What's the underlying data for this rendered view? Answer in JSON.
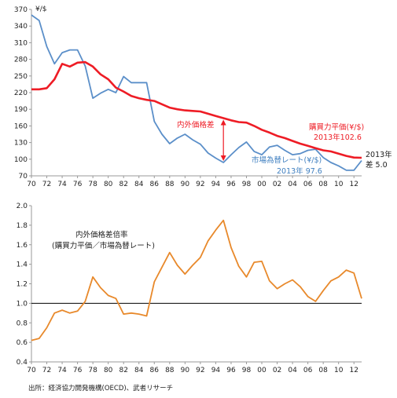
{
  "colors": {
    "ppp": "#ee1c25",
    "market": "#5b8fc9",
    "ratio": "#e8892b",
    "axis": "#999999",
    "text": "#222222",
    "annotation_ppp": "#ee1c25",
    "annotation_market": "#3f7fc0"
  },
  "chart_data": [
    {
      "type": "line",
      "ylabel": "¥/$",
      "ylim": [
        70,
        370
      ],
      "yticks": [
        70,
        100,
        130,
        160,
        190,
        220,
        250,
        280,
        310,
        340,
        370
      ],
      "xlim": [
        1970,
        2013
      ],
      "xtick_values": [
        1970,
        1972,
        1974,
        1976,
        1978,
        1980,
        1982,
        1984,
        1986,
        1988,
        1990,
        1992,
        1994,
        1996,
        1998,
        2000,
        2002,
        2004,
        2006,
        2008,
        2010,
        2012
      ],
      "xtick_labels": [
        "70",
        "72",
        "74",
        "76",
        "78",
        "80",
        "82",
        "84",
        "86",
        "88",
        "90",
        "92",
        "94",
        "96",
        "98",
        "00",
        "02",
        "04",
        "06",
        "08",
        "10",
        "12"
      ],
      "grid": false,
      "x": [
        1970,
        1971,
        1972,
        1973,
        1974,
        1975,
        1976,
        1977,
        1978,
        1979,
        1980,
        1981,
        1982,
        1983,
        1984,
        1985,
        1986,
        1987,
        1988,
        1989,
        1990,
        1991,
        1992,
        1993,
        1994,
        1995,
        1996,
        1997,
        1998,
        1999,
        2000,
        2001,
        2002,
        2003,
        2004,
        2005,
        2006,
        2007,
        2008,
        2009,
        2010,
        2011,
        2012,
        2013
      ],
      "series": [
        {
          "key": "ppp",
          "values": [
            226,
            226,
            228,
            244,
            272,
            267,
            274,
            275,
            267,
            253,
            244,
            229,
            222,
            214,
            210,
            207,
            205,
            199,
            193,
            190,
            188,
            187,
            186,
            182,
            178,
            174,
            170,
            167,
            166,
            160,
            153,
            148,
            142,
            138,
            133,
            128,
            124,
            120,
            116,
            114,
            110,
            106,
            103,
            102.6
          ]
        },
        {
          "key": "market",
          "values": [
            360,
            350,
            303,
            272,
            292,
            297,
            297,
            268,
            210,
            219,
            226,
            220,
            249,
            238,
            238,
            238,
            168,
            145,
            128,
            138,
            145,
            135,
            127,
            111,
            102,
            94,
            108,
            121,
            131,
            114,
            108,
            122,
            125,
            116,
            108,
            110,
            116,
            118,
            103,
            94,
            88,
            80,
            80,
            97.6
          ]
        }
      ],
      "annotations": {
        "gap": "内外価格差",
        "ppp_label": "購買力平価(¥/$)",
        "ppp_value": "2013年102.6",
        "market_label": "市場為替レート(¥/$)",
        "market_value": "2013年 97.6",
        "gap_2013_year": "2013年",
        "gap_2013_value": "差 5.0"
      }
    },
    {
      "type": "line",
      "ylim": [
        0.4,
        2.0
      ],
      "yticks": [
        "0.4",
        "0.6",
        "0.8",
        "1.0",
        "1.2",
        "1.4",
        "1.6",
        "1.8",
        "2.0"
      ],
      "xlim": [
        1970,
        2013
      ],
      "xtick_values": [
        1970,
        1972,
        1974,
        1976,
        1978,
        1980,
        1982,
        1984,
        1986,
        1988,
        1990,
        1992,
        1994,
        1996,
        1998,
        2000,
        2002,
        2004,
        2006,
        2008,
        2010,
        2012
      ],
      "xtick_labels": [
        "70",
        "72",
        "74",
        "76",
        "78",
        "80",
        "82",
        "84",
        "86",
        "88",
        "90",
        "92",
        "94",
        "96",
        "98",
        "00",
        "02",
        "04",
        "06",
        "08",
        "10",
        "12"
      ],
      "grid": false,
      "reference_line": 1.0,
      "title_lines": [
        "内外価格差倍率",
        "(購買力平価／市場為替レート)"
      ],
      "x": [
        1970,
        1971,
        1972,
        1973,
        1974,
        1975,
        1976,
        1977,
        1978,
        1979,
        1980,
        1981,
        1982,
        1983,
        1984,
        1985,
        1986,
        1987,
        1988,
        1989,
        1990,
        1991,
        1992,
        1993,
        1994,
        1995,
        1996,
        1997,
        1998,
        1999,
        2000,
        2001,
        2002,
        2003,
        2004,
        2005,
        2006,
        2007,
        2008,
        2009,
        2010,
        2011,
        2012,
        2013
      ],
      "values": [
        0.62,
        0.64,
        0.75,
        0.9,
        0.93,
        0.9,
        0.92,
        1.02,
        1.27,
        1.16,
        1.08,
        1.05,
        0.89,
        0.9,
        0.89,
        0.87,
        1.22,
        1.37,
        1.52,
        1.39,
        1.3,
        1.39,
        1.47,
        1.64,
        1.75,
        1.85,
        1.57,
        1.38,
        1.27,
        1.42,
        1.43,
        1.23,
        1.15,
        1.2,
        1.24,
        1.17,
        1.07,
        1.02,
        1.13,
        1.23,
        1.27,
        1.34,
        1.31,
        1.05
      ]
    }
  ],
  "source_note": "出所：経済協力開発機構(OECD)、武者リサーチ"
}
